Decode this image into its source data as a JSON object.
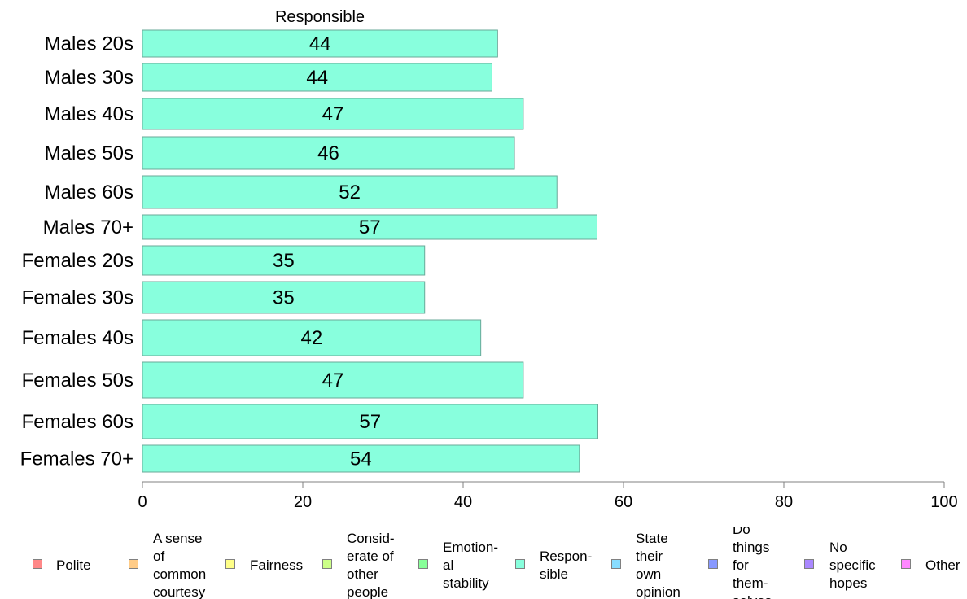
{
  "chart_data": {
    "type": "bar",
    "orientation": "horizontal",
    "title": "Responsible",
    "categories": [
      "Males 20s",
      "Males 30s",
      "Males 40s",
      "Males 50s",
      "Males 60s",
      "Males 70+",
      "Females 20s",
      "Females 30s",
      "Females 40s",
      "Females 50s",
      "Females 60s",
      "Females 70+"
    ],
    "series": [
      {
        "name": "Responsible",
        "values": [
          44.3,
          43.6,
          47.5,
          46.4,
          51.7,
          56.7,
          35.2,
          35.2,
          42.2,
          47.5,
          56.8,
          54.5
        ],
        "labels": [
          "44",
          "44",
          "47",
          "46",
          "52",
          "57",
          "35",
          "35",
          "42",
          "47",
          "57",
          "54"
        ],
        "color": "#88ffdd"
      }
    ],
    "xlim": [
      0,
      100
    ],
    "xticks": [
      0,
      20,
      40,
      60,
      80,
      100
    ],
    "grid": false,
    "legend_position": "bottom",
    "legend": [
      {
        "label": "Polite",
        "color": "#ff8888"
      },
      {
        "label": "A sense\nof\ncommon\ncourtesy",
        "color": "#ffcc88"
      },
      {
        "label": "Fairness",
        "color": "#ffff88"
      },
      {
        "label": "Consid-\nerate of\nother\npeople",
        "color": "#ccff88"
      },
      {
        "label": "Emotion-\nal\nstability",
        "color": "#88ff99"
      },
      {
        "label": "Respon-\nsible",
        "color": "#88ffdd"
      },
      {
        "label": "State\ntheir\nown\nopinion",
        "color": "#88ddff"
      },
      {
        "label": "Do\nthings\nfor\nthem-\nselves",
        "color": "#8899ff"
      },
      {
        "label": "No\nspecific\nhopes",
        "color": "#aa88ff"
      },
      {
        "label": "Other",
        "color": "#ff88ff"
      }
    ]
  }
}
